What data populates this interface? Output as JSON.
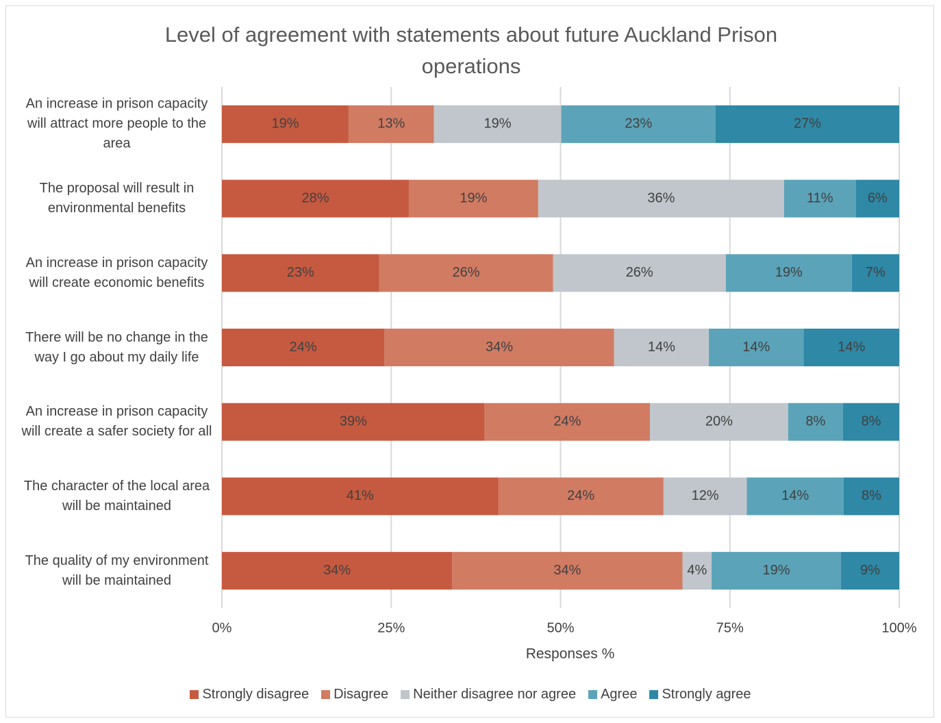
{
  "chart_data": {
    "type": "stacked_bar_horizontal",
    "title": "Level of agreement with statements about future Auckland Prison operations",
    "xlabel": "Responses %",
    "categories": [
      "An increase in prison capacity will attract more people to the area",
      "The proposal will result in environmental benefits",
      "An increase in prison capacity will create economic benefits",
      "There will be no change in the way I go about my daily life",
      "An increase in prison capacity will create a safer society for all",
      "The character of the local area will be maintained",
      "The quality of my environment will be maintained"
    ],
    "series": [
      {
        "name": "Strongly disagree",
        "color": "#c65a40",
        "values": [
          18.7,
          27.6,
          23.2,
          24.0,
          38.8,
          40.8,
          34.0
        ],
        "value_labels": [
          "19%",
          "28%",
          "23%",
          "24%",
          "39%",
          "41%",
          "34%"
        ]
      },
      {
        "name": "Disagree",
        "color": "#d17b63",
        "values": [
          12.6,
          19.1,
          25.7,
          33.9,
          24.4,
          24.4,
          34.0
        ],
        "value_labels": [
          "13%",
          "19%",
          "26%",
          "34%",
          "24%",
          "24%",
          "34%"
        ]
      },
      {
        "name": "Neither disagree nor agree",
        "color": "#c0c6cc",
        "values": [
          18.8,
          36.3,
          25.5,
          14.0,
          20.4,
          12.3,
          4.3
        ],
        "value_labels": [
          "19%",
          "36%",
          "26%",
          "14%",
          "20%",
          "12%",
          "4%"
        ]
      },
      {
        "name": "Agree",
        "color": "#5ba3b8",
        "values": [
          22.8,
          10.6,
          18.6,
          14.0,
          8.1,
          14.3,
          19.1
        ],
        "value_labels": [
          "23%",
          "11%",
          "19%",
          "14%",
          "8%",
          "14%",
          "19%"
        ]
      },
      {
        "name": "Strongly agree",
        "color": "#2e88a6",
        "values": [
          27.1,
          6.4,
          7.0,
          14.1,
          8.3,
          8.2,
          8.6
        ],
        "value_labels": [
          "27%",
          "6%",
          "7%",
          "14%",
          "8%",
          "8%",
          "9%"
        ]
      }
    ],
    "xlim": [
      0,
      100
    ],
    "xticks": [
      {
        "value": 0,
        "label": "0%"
      },
      {
        "value": 25,
        "label": "25%"
      },
      {
        "value": 50,
        "label": "50%"
      },
      {
        "value": 75,
        "label": "75%"
      },
      {
        "value": 100,
        "label": "100%"
      }
    ],
    "grid": true,
    "legend": "bottom"
  }
}
